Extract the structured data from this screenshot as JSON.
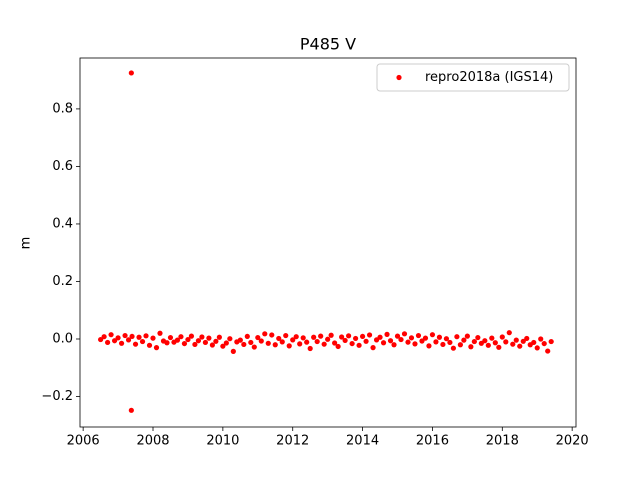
{
  "chart_data": {
    "type": "scatter",
    "title": "P485 V",
    "y_label": "m",
    "x": [
      2006.5,
      2006.6,
      2006.7,
      2006.8,
      2006.9,
      2007.0,
      2007.1,
      2007.2,
      2007.3,
      2007.4,
      2007.5,
      2007.6,
      2007.7,
      2007.8,
      2007.9,
      2008.0,
      2008.1,
      2008.2,
      2008.3,
      2008.4,
      2008.5,
      2008.6,
      2008.7,
      2008.8,
      2008.9,
      2009.0,
      2009.1,
      2009.2,
      2009.3,
      2009.4,
      2009.5,
      2009.6,
      2009.7,
      2009.8,
      2009.9,
      2010.0,
      2010.1,
      2010.2,
      2010.3,
      2010.4,
      2010.5,
      2010.6,
      2010.7,
      2010.8,
      2010.9,
      2011.0,
      2011.1,
      2011.2,
      2011.3,
      2011.4,
      2011.5,
      2011.6,
      2011.7,
      2011.8,
      2011.9,
      2012.0,
      2012.1,
      2012.2,
      2012.3,
      2012.4,
      2012.5,
      2012.6,
      2012.7,
      2012.8,
      2012.9,
      2013.0,
      2013.1,
      2013.2,
      2013.3,
      2013.4,
      2013.5,
      2013.6,
      2013.7,
      2013.8,
      2013.9,
      2014.0,
      2014.1,
      2014.2,
      2014.3,
      2014.4,
      2014.5,
      2014.6,
      2014.7,
      2014.8,
      2014.9,
      2015.0,
      2015.1,
      2015.2,
      2015.3,
      2015.4,
      2015.5,
      2015.6,
      2015.7,
      2015.8,
      2015.9,
      2016.0,
      2016.1,
      2016.2,
      2016.3,
      2016.4,
      2016.5,
      2016.6,
      2016.7,
      2016.8,
      2016.9,
      2017.0,
      2017.1,
      2017.2,
      2017.3,
      2017.4,
      2017.5,
      2017.6,
      2017.7,
      2017.8,
      2017.9,
      2018.0,
      2018.1,
      2018.2,
      2018.3,
      2018.4,
      2018.5,
      2018.6,
      2018.7,
      2018.8,
      2018.9,
      2019.0,
      2019.1,
      2019.2,
      2019.3,
      2019.4,
      2007.38,
      2007.38
    ],
    "series": [
      {
        "name": "repro2018a (IGS14)",
        "color": "#ff0000",
        "values": [
          -0.002,
          0.008,
          -0.012,
          0.015,
          -0.006,
          0.004,
          -0.015,
          0.012,
          -0.003,
          0.009,
          -0.018,
          0.006,
          -0.009,
          0.011,
          -0.022,
          0.003,
          -0.03,
          0.02,
          -0.007,
          -0.013,
          0.005,
          -0.011,
          -0.004,
          0.008,
          -0.016,
          -0.002,
          0.01,
          -0.019,
          -0.006,
          0.007,
          -0.012,
          0.003,
          -0.021,
          -0.008,
          0.006,
          -0.025,
          -0.014,
          0.001,
          -0.043,
          -0.01,
          -0.004,
          -0.019,
          0.009,
          -0.012,
          -0.028,
          0.005,
          -0.007,
          0.018,
          -0.015,
          0.014,
          -0.02,
          0.002,
          -0.01,
          0.012,
          -0.024,
          -0.003,
          0.008,
          -0.017,
          0.004,
          -0.011,
          -0.033,
          0.006,
          -0.009,
          0.01,
          -0.018,
          -0.001,
          0.013,
          -0.014,
          -0.026,
          0.007,
          -0.005,
          0.011,
          -0.016,
          0.002,
          -0.022,
          0.009,
          -0.008,
          0.014,
          -0.03,
          -0.003,
          0.006,
          -0.013,
          0.016,
          -0.006,
          -0.02,
          0.01,
          -0.002,
          0.018,
          -0.011,
          0.004,
          -0.017,
          0.012,
          -0.007,
          0.003,
          -0.024,
          0.015,
          -0.01,
          0.006,
          -0.019,
          0.001,
          -0.012,
          -0.032,
          0.008,
          -0.02,
          -0.004,
          0.01,
          -0.027,
          -0.009,
          0.005,
          -0.015,
          -0.006,
          -0.022,
          0.003,
          -0.013,
          -0.029,
          0.007,
          -0.01,
          0.022,
          -0.018,
          -0.004,
          -0.025,
          -0.008,
          0.002,
          -0.02,
          -0.012,
          -0.031,
          0.0,
          -0.016,
          -0.042,
          -0.009,
          0.925,
          -0.248
        ]
      }
    ],
    "xlim": [
      2005.91,
      2020.11
    ],
    "xticks": [
      2006,
      2008,
      2010,
      2012,
      2014,
      2016,
      2018,
      2020
    ],
    "ylim": [
      -0.306,
      0.977
    ],
    "yticks": [
      {
        "value": -0.2,
        "label": "−0.2"
      },
      {
        "value": 0,
        "label": "0.0"
      },
      0.2,
      0.4,
      0.6,
      0.8
    ],
    "legend": "upper right"
  }
}
